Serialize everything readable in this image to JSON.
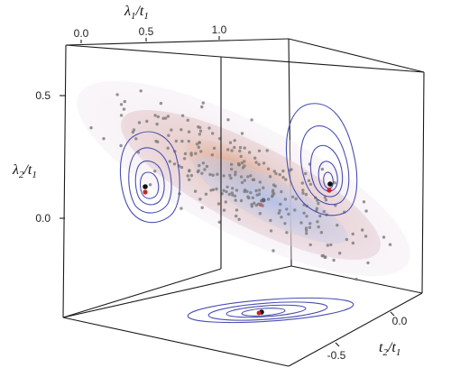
{
  "chart_data": {
    "type": "scatter",
    "projection": "3d",
    "axes": {
      "x": {
        "label_main": "λ",
        "label_sub": "1",
        "label_den": "/t",
        "label_den_sub": "1",
        "ticks": [
          "0.0",
          "0.5",
          "1.0"
        ],
        "tick_values": [
          0.0,
          0.5,
          1.0
        ],
        "range": [
          -0.1,
          1.5
        ]
      },
      "y": {
        "label_main": "λ",
        "label_sub": "2",
        "label_den": "/t",
        "label_den_sub": "1",
        "ticks": [
          "0.5",
          "0.0"
        ],
        "tick_values": [
          0.5,
          0.0
        ],
        "range": [
          -0.35,
          0.75
        ]
      },
      "z": {
        "label_main": "t",
        "label_sub": "2",
        "label_den": "/t",
        "label_den_sub": "1",
        "ticks": [
          "0.0",
          "-0.5"
        ],
        "tick_values": [
          0.0,
          -0.5
        ],
        "range": [
          -0.9,
          0.35
        ]
      }
    },
    "samples_count": 260,
    "mean_point_color": "#111111",
    "true_point_color": "#d62020",
    "contour_color": "#4a4fb0",
    "density_color_low": "#e9dde6",
    "density_color_high": "#d9a080",
    "density_color_core": "#b9c4e8"
  }
}
